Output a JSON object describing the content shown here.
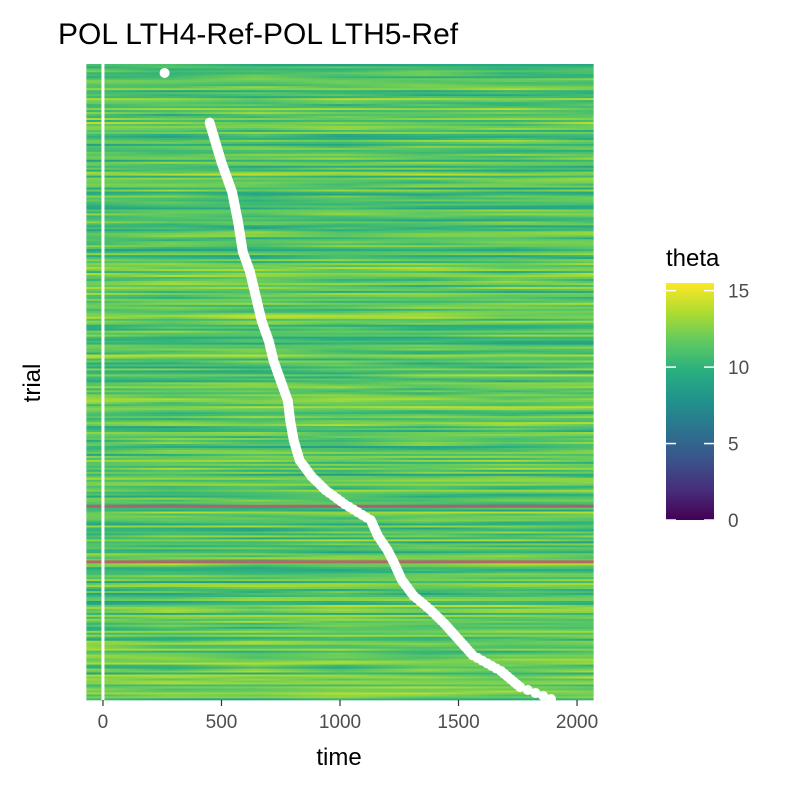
{
  "chart_data": {
    "type": "heatmap",
    "title": "POL LTH4-Ref-POL LTH5-Ref",
    "xlabel": "time",
    "ylabel": "trial",
    "xlim": [
      -80,
      2080
    ],
    "x_ticks": [
      0,
      500,
      1000,
      1500,
      2000
    ],
    "x_tick_labels": [
      "0",
      "500",
      "1000",
      "1500",
      "2000"
    ],
    "y_ticks": [],
    "grid": false,
    "n_trials": 320,
    "heat_x_range": [
      -70,
      2070
    ],
    "vline_x": 0,
    "colorbar": {
      "title": "theta",
      "min": 0,
      "max": 15.5,
      "ticks": [
        0,
        5,
        10,
        15
      ],
      "tick_labels": [
        "0",
        "5",
        "10",
        "15"
      ],
      "palette": [
        "#440154",
        "#472d7b",
        "#3b528b",
        "#2c728e",
        "#21918c",
        "#28ae80",
        "#5ec962",
        "#addc30",
        "#fde725"
      ]
    },
    "highlighted_rows": [
      {
        "trial": 97,
        "color": "#c0556c"
      },
      {
        "trial": 69,
        "color": "#c0556c"
      }
    ],
    "response_points": {
      "color": "#ffffff",
      "note_free": true,
      "trials": [
        315,
        290,
        270,
        255,
        240,
        225,
        215,
        200,
        190,
        180,
        170,
        160,
        150,
        140,
        130,
        120,
        112,
        105,
        98,
        90,
        82,
        75,
        68,
        60,
        52,
        45,
        38,
        30,
        22,
        14,
        6,
        0
      ],
      "times": [
        260,
        450,
        500,
        545,
        570,
        590,
        620,
        650,
        670,
        700,
        720,
        750,
        780,
        790,
        805,
        830,
        880,
        940,
        1020,
        1130,
        1160,
        1200,
        1230,
        1260,
        1310,
        1380,
        1440,
        1500,
        1560,
        1680,
        1760,
        1890
      ]
    }
  }
}
